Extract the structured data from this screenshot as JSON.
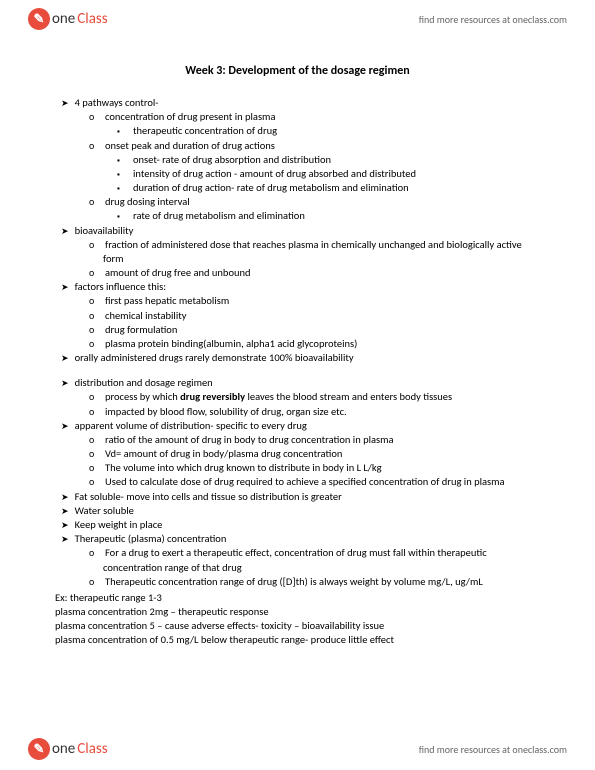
{
  "brand": {
    "icon_bg": "#e74c3c",
    "text1": "one",
    "text2": "Class"
  },
  "header_link": "find more resources at oneclass.com",
  "footer_link": "find more resources at oneclass.com",
  "title": "Week 3: Development of the dosage regimen",
  "s1": {
    "h": "4 pathways control-",
    "a": "concentration of drug present in plasma",
    "a1": "therapeutic concentration of drug",
    "b": "onset peak and duration of drug actions",
    "b1": "onset- rate of drug absorption and distribution",
    "b2": "intensity of drug action  - amount of drug absorbed and distributed",
    "b3": "duration of drug action- rate of drug metabolism and elimination",
    "c": "drug dosing interval",
    "c1": "rate of drug metabolism and elimination"
  },
  "s2": {
    "h": "bioavailability",
    "a": "fraction of administered dose that reaches plasma in chemically unchanged and biologically active form",
    "b": "amount of drug free and unbound"
  },
  "s3": {
    "h": "factors influence this:",
    "a": "first pass hepatic metabolism",
    "b": "chemical instability",
    "c": "drug formulation",
    "d": "plasma protein binding(albumin, alpha1 acid glycoproteins)"
  },
  "s4": {
    "h": "orally administered drugs rarely demonstrate 100% bioavailability"
  },
  "s5": {
    "h": "distribution  and dosage regimen",
    "a_pre": "process by which ",
    "a_bold": "drug reversibly",
    "a_post": " leaves the blood stream and enters body tissues",
    "b": "impacted by blood flow, solubility of drug, organ size etc."
  },
  "s6": {
    "h": "apparent volume of distribution- specific to every drug",
    "a": "ratio of the amount of drug in body to drug concentration in plasma",
    "b": "Vd= amount of drug in body/plasma drug concentration",
    "c": "The volume into which drug  known to distribute in body in L L/kg",
    "d": "Used to calculate dose of drug required to achieve a specified concentration of drug in plasma"
  },
  "s7": {
    "a": "Fat soluble- move into cells and tissue so distribution is greater",
    "b": "Water soluble",
    "c": "Keep weight in place"
  },
  "s8": {
    "h": "Therapeutic (plasma) concentration",
    "a": "For a  drug to exert a therapeutic effect, concentration of drug must fall within therapeutic concentration range of that drug",
    "b": "Therapeutic concentration range of drug ([D]th) is always weight by volume mg/L, ug/mL"
  },
  "ex": {
    "a": "Ex: therapeutic range 1-3",
    "b": "plasma concentration 2mg – therapeutic response",
    "c": "plasma concentration 5 – cause adverse effects- toxicity – bioavailability issue",
    "d": "plasma concentration of 0.5 mg/L below therapeutic range- produce little effect"
  }
}
